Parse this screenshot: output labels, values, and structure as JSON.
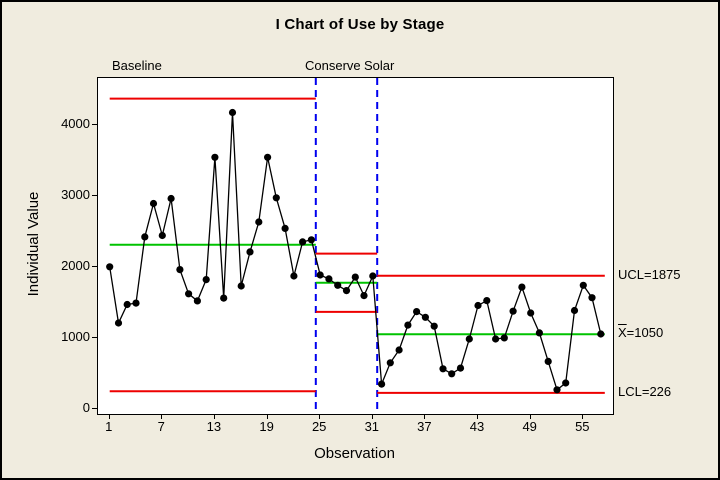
{
  "title": "I Chart of Use by Stage",
  "x_axis": {
    "label": "Observation",
    "ticks": [
      1,
      7,
      13,
      19,
      25,
      31,
      37,
      43,
      49,
      55
    ]
  },
  "y_axis": {
    "label": "Individual Value",
    "ticks": [
      0,
      1000,
      2000,
      3000,
      4000
    ]
  },
  "right_labels": {
    "ucl": {
      "text": "UCL=1875"
    },
    "mean": {
      "prefix": "X",
      "text": "=1050"
    },
    "lcl": {
      "text": "LCL=226"
    }
  },
  "colors": {
    "limit_line": "#ee0000",
    "center_line": "#00c300",
    "stage_divider": "#0000ee",
    "data": "#000000",
    "plot_bg": "#ffffff",
    "canvas_bg": "#f0ecdf"
  },
  "chart_data": {
    "type": "line",
    "subtype": "individuals-control-chart",
    "title": "I Chart of Use by Stage",
    "xlabel": "Observation",
    "ylabel": "Individual Value",
    "ylim": [
      0,
      4650
    ],
    "xlim": [
      1,
      57
    ],
    "grid": false,
    "legend": "none",
    "dividers_at_obs": [
      24.5,
      31.5
    ],
    "stages": [
      {
        "name": "Baseline",
        "start_obs": 1,
        "end_obs": 24,
        "ucl": 4365,
        "center": 2310,
        "lcl": 250,
        "values": [
          2000,
          1210,
          1470,
          1490,
          2420,
          2890,
          2440,
          2960,
          1960,
          1620,
          1520,
          1820,
          3540,
          1560,
          4170,
          1730,
          2210,
          2630,
          3540,
          2970,
          2540,
          1870,
          2350,
          2380
        ]
      },
      {
        "name": "Conserve",
        "start_obs": 25,
        "end_obs": 31,
        "ucl": 2185,
        "center": 1775,
        "lcl": 1365,
        "values": [
          1885,
          1830,
          1740,
          1665,
          1855,
          1595,
          1870
        ]
      },
      {
        "name": "Solar",
        "start_obs": 32,
        "end_obs": 57,
        "ucl": 1875,
        "center": 1050,
        "lcl": 226,
        "values": [
          350,
          650,
          830,
          1180,
          1370,
          1290,
          1165,
          565,
          495,
          575,
          985,
          1455,
          1525,
          985,
          1000,
          1375,
          1715,
          1350,
          1070,
          670,
          270,
          365,
          1385,
          1740,
          1565,
          1055
        ]
      }
    ],
    "annotations": [
      "UCL=1875",
      "X̅=1050",
      "LCL=226"
    ],
    "stage_labels_row": [
      "Baseline",
      "Conserve",
      "Solar"
    ]
  }
}
